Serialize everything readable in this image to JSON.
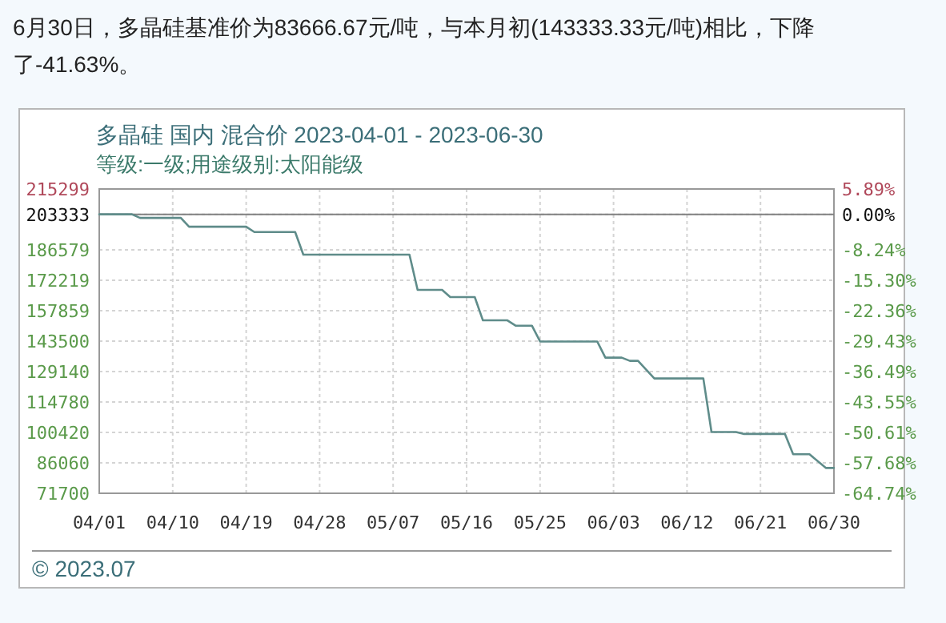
{
  "chart_data": {
    "type": "line",
    "title": "多晶硅 国内 混合价 2023-04-01 - 2023-06-30",
    "subtitle": "等级:一级;用途级别:太阳能级",
    "annotations": [
      "6月30日，多晶硅基准价为83666.67元/吨，与本月初(143333.33元/吨)相比，下降了-41.63%。",
      "© 2023.07"
    ],
    "series": [
      {
        "color": "#5f8c8a",
        "x": [
          "2023-04-01",
          "2023-04-05",
          "2023-04-06",
          "2023-04-11",
          "2023-04-12",
          "2023-04-19",
          "2023-04-20",
          "2023-04-25",
          "2023-04-26",
          "2023-05-09",
          "2023-05-10",
          "2023-05-13",
          "2023-05-14",
          "2023-05-17",
          "2023-05-18",
          "2023-05-21",
          "2023-05-22",
          "2023-05-24",
          "2023-05-25",
          "2023-06-01",
          "2023-06-02",
          "2023-06-04",
          "2023-06-05",
          "2023-06-06",
          "2023-06-08",
          "2023-06-14",
          "2023-06-15",
          "2023-06-18",
          "2023-06-19",
          "2023-06-24",
          "2023-06-25",
          "2023-06-27",
          "2023-06-29",
          "2023-06-30"
        ],
        "values": [
          203333,
          203333,
          201667,
          201667,
          197500,
          197500,
          195000,
          195000,
          184300,
          184300,
          167700,
          167700,
          164300,
          164300,
          153300,
          153300,
          150800,
          150800,
          143333,
          143333,
          135700,
          135700,
          134200,
          134200,
          125900,
          125900,
          100600,
          100600,
          99700,
          99700,
          90100,
          90100,
          83667,
          83667
        ]
      }
    ],
    "xlim": [
      "2023-04-01",
      "2023-06-30"
    ],
    "xticks": [
      {
        "value": "2023-04-01",
        "label": "04/01"
      },
      {
        "value": "2023-04-10",
        "label": "04/10"
      },
      {
        "value": "2023-04-19",
        "label": "04/19"
      },
      {
        "value": "2023-04-28",
        "label": "04/28"
      },
      {
        "value": "2023-05-07",
        "label": "05/07"
      },
      {
        "value": "2023-05-16",
        "label": "05/16"
      },
      {
        "value": "2023-05-25",
        "label": "05/25"
      },
      {
        "value": "2023-06-03",
        "label": "06/03"
      },
      {
        "value": "2023-06-12",
        "label": "06/12"
      },
      {
        "value": "2023-06-21",
        "label": "06/21"
      },
      {
        "value": "2023-06-30",
        "label": "06/30"
      }
    ],
    "ylim": [
      71700,
      215299
    ],
    "yticks": [
      71700,
      86060,
      100420,
      114780,
      129140,
      143500,
      157859,
      172219,
      186579,
      203333,
      215299
    ],
    "y2lim": [
      -64.74,
      5.89
    ],
    "y2ticks": [
      {
        "value": -64.74,
        "label": "-64.74%"
      },
      {
        "value": -57.68,
        "label": "-57.68%"
      },
      {
        "value": -50.61,
        "label": "-50.61%"
      },
      {
        "value": -43.55,
        "label": "-43.55%"
      },
      {
        "value": -36.49,
        "label": "-36.49%"
      },
      {
        "value": -29.43,
        "label": "-29.43%"
      },
      {
        "value": -22.36,
        "label": "-22.36%"
      },
      {
        "value": -15.3,
        "label": "-15.30%"
      },
      {
        "value": -8.24,
        "label": "-8.24%"
      },
      {
        "value": 0.0,
        "label": "0.00%"
      },
      {
        "value": 5.89,
        "label": "5.89%"
      }
    ],
    "ref_lines": [
      {
        "axis": "y",
        "value": 203333,
        "color": "#808080"
      }
    ],
    "grid": true
  }
}
